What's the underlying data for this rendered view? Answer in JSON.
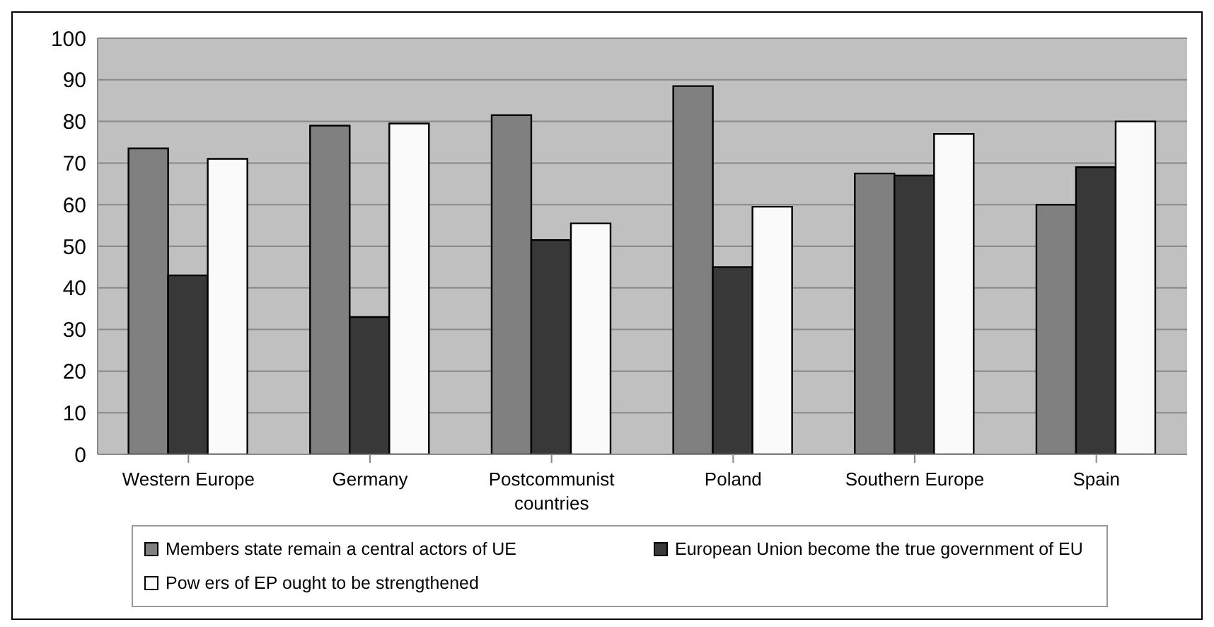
{
  "chart_data": {
    "type": "bar",
    "categories": [
      "Western Europe",
      "Germany",
      "Postcommunist countries",
      "Poland",
      "Southern Europe",
      "Spain"
    ],
    "series": [
      {
        "name": "Members state remain a central actors of UE",
        "color": "#808080",
        "values": [
          73.5,
          79,
          81.5,
          88.5,
          67.5,
          60
        ]
      },
      {
        "name": "European Union become the true government of EU",
        "color": "#383838",
        "values": [
          43,
          33,
          51.5,
          45,
          67,
          69
        ]
      },
      {
        "name": "Pow ers of EP ought to be strengthened",
        "color": "#fafafa",
        "values": [
          71,
          79.5,
          55.5,
          59.5,
          77,
          80
        ]
      }
    ],
    "ylim": [
      0,
      100
    ],
    "yticks": [
      0,
      10,
      20,
      30,
      40,
      50,
      60,
      70,
      80,
      90,
      100
    ],
    "grid": "y",
    "legend": "bottom"
  }
}
